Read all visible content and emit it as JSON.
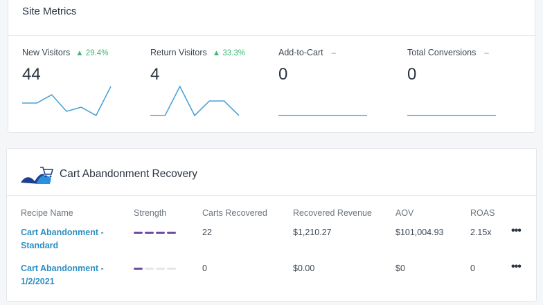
{
  "site_metrics": {
    "title": "Site Metrics",
    "metrics": [
      {
        "label": "New Visitors",
        "change": "▲ 29.4%",
        "value": "44",
        "trend": [
          3,
          3,
          5,
          1,
          2,
          0,
          7
        ]
      },
      {
        "label": "Return Visitors",
        "change": "▲ 33.3%",
        "value": "4",
        "trend": [
          0,
          0,
          4,
          0,
          2,
          2,
          0
        ]
      },
      {
        "label": "Add-to-Cart",
        "change": "–",
        "value": "0",
        "trend": [
          0,
          0,
          0,
          0,
          0,
          0,
          0
        ]
      },
      {
        "label": "Total Conversions",
        "change": "–",
        "value": "0",
        "trend": [
          0,
          0,
          0,
          0,
          0,
          0,
          0
        ]
      }
    ],
    "colors": {
      "positive": "#3cb878",
      "sparkline": "#4aa3d8"
    }
  },
  "recovery": {
    "title": "Cart Abandonment Recovery",
    "logo_icon": "cart-wave-logo-icon",
    "columns": [
      "Recipe Name",
      "Strength",
      "Carts Recovered",
      "Recovered Revenue",
      "AOV",
      "ROAS"
    ],
    "rows": [
      {
        "name": "Cart Abandonment - Standard",
        "strength": 4,
        "carts": "22",
        "revenue": "$1,210.27",
        "aov": "$101,004.93",
        "roas": "2.15x",
        "more": "•••"
      },
      {
        "name": "Cart Abandonment - 1/2/2021",
        "strength": 1,
        "carts": "0",
        "revenue": "$0.00",
        "aov": "$0",
        "roas": "0",
        "more": "•••"
      }
    ],
    "strength_max": 4
  }
}
